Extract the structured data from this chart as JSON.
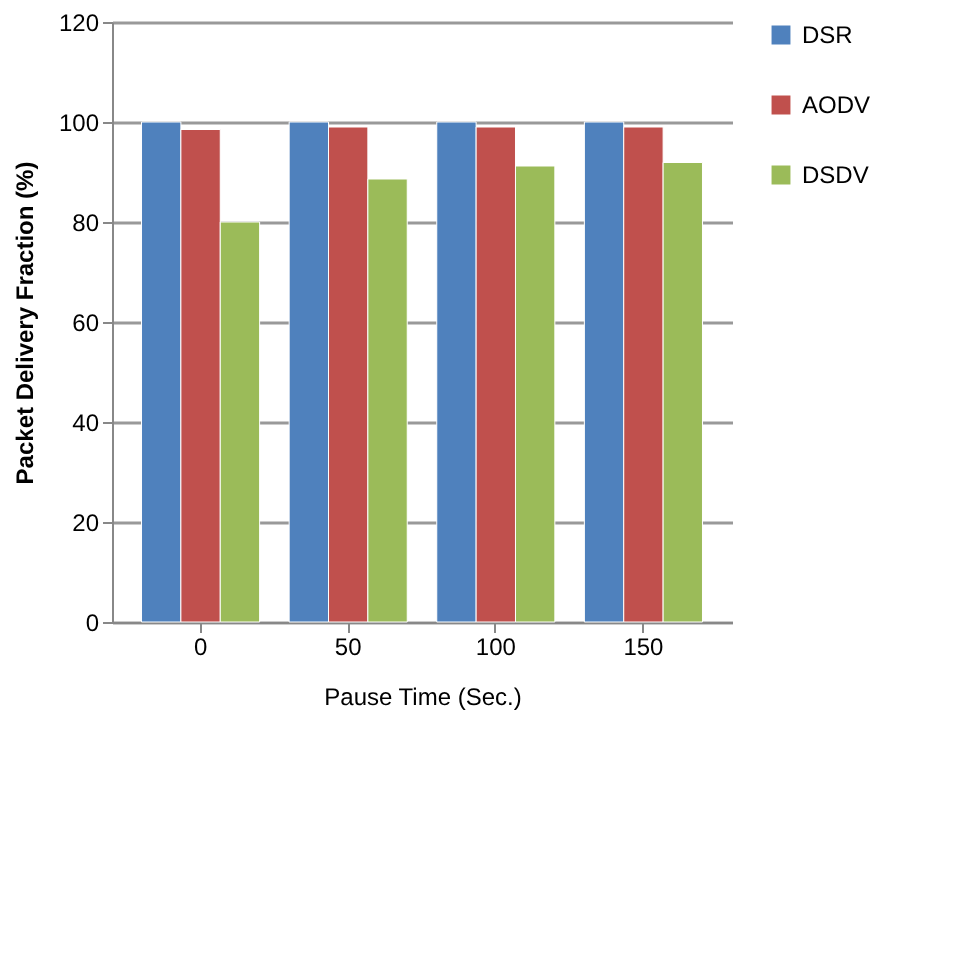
{
  "chart_data": {
    "type": "bar",
    "xlabel": "Pause Time (Sec.)",
    "ylabel": "Packet Delivery Fraction (%)",
    "categories": [
      "0",
      "50",
      "100",
      "150"
    ],
    "series": [
      {
        "name": "DSR",
        "color": "#4f81bd",
        "values": [
          100,
          100,
          100,
          100
        ]
      },
      {
        "name": "AODV",
        "color": "#c0504d",
        "values": [
          98.5,
          99,
          99,
          99
        ]
      },
      {
        "name": "DSDV",
        "color": "#9bbb59",
        "values": [
          80,
          88.6,
          91.2,
          91.9
        ]
      }
    ],
    "ylim": [
      0,
      120
    ],
    "yticks": [
      0,
      20,
      40,
      60,
      80,
      100,
      120
    ],
    "grid": "y",
    "legend": "right"
  }
}
